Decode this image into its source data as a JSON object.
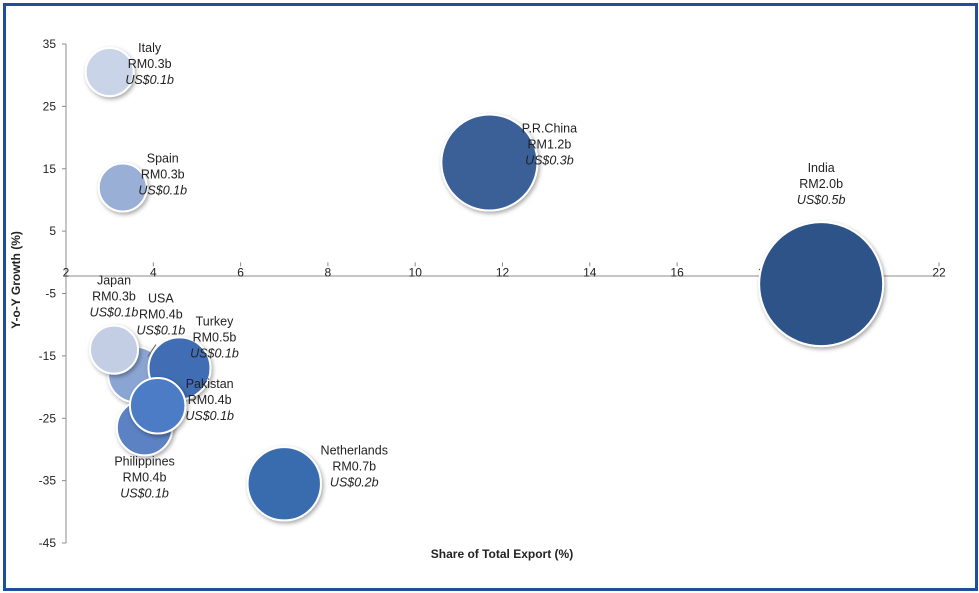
{
  "chart_data": {
    "type": "bubble",
    "xlabel": "Share of Total Export (%)",
    "ylabel": "Y-o-Y Growth (%)",
    "xlim": [
      2,
      22
    ],
    "ylim": [
      -45,
      35
    ],
    "x_ticks": [
      "2",
      "4",
      "6",
      "8",
      "10",
      "12",
      "14",
      "16",
      "18",
      "20",
      "22"
    ],
    "y_ticks": [
      "35",
      "25",
      "15",
      "5",
      "-5",
      "-15",
      "-25",
      "-35",
      "-45"
    ],
    "grid": false,
    "points": [
      {
        "label": "Italy",
        "x": 3.0,
        "y": 30.5,
        "size_rm_b": 0.3,
        "rm": "RM0.3b",
        "usd": "US$0.1b",
        "color": "#c9d4e8"
      },
      {
        "label": "Spain",
        "x": 3.3,
        "y": 12.0,
        "size_rm_b": 0.3,
        "rm": "RM0.3b",
        "usd": "US$0.1b",
        "color": "#9aafd6"
      },
      {
        "label": "P.R.China",
        "x": 11.7,
        "y": 16.0,
        "size_rm_b": 1.2,
        "rm": "RM1.2b",
        "usd": "US$0.3b",
        "color": "#3a6197"
      },
      {
        "label": "India",
        "x": 19.3,
        "y": -3.5,
        "size_rm_b": 2.0,
        "rm": "RM2.0b",
        "usd": "US$0.5b",
        "color": "#2d5289"
      },
      {
        "label": "USA",
        "x": 3.6,
        "y": -18.0,
        "size_rm_b": 0.4,
        "rm": "RM0.4b",
        "usd": "US$0.1b",
        "color": "#8aa5d3"
      },
      {
        "label": "Turkey",
        "x": 4.6,
        "y": -17.0,
        "size_rm_b": 0.5,
        "rm": "RM0.5b",
        "usd": "US$0.1b",
        "color": "#3f6db3"
      },
      {
        "label": "Japan",
        "x": 3.1,
        "y": -14.0,
        "size_rm_b": 0.3,
        "rm": "RM0.3b",
        "usd": "US$0.1b",
        "color": "#c3cee5"
      },
      {
        "label": "Philippines",
        "x": 3.8,
        "y": -26.5,
        "size_rm_b": 0.4,
        "rm": "RM0.4b",
        "usd": "US$0.1b",
        "color": "#5b82c4"
      },
      {
        "label": "Pakistan",
        "x": 4.1,
        "y": -23.0,
        "size_rm_b": 0.4,
        "rm": "RM0.4b",
        "usd": "US$0.1b",
        "color": "#4b7bc5"
      },
      {
        "label": "Netherlands",
        "x": 7.0,
        "y": -35.5,
        "size_rm_b": 0.7,
        "rm": "RM0.7b",
        "usd": "US$0.2b",
        "color": "#386cae"
      }
    ]
  }
}
